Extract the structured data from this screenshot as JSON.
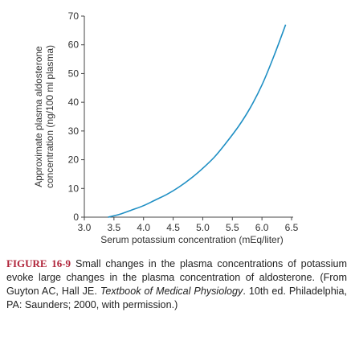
{
  "chart_data": {
    "type": "line",
    "xlabel": "Serum potassium concentration (mEq/liter)",
    "ylabel_lines": [
      "Approximate plasma aldosterone",
      "concentration (ng/100 ml plasma)"
    ],
    "xlim": [
      3.0,
      6.5
    ],
    "ylim": [
      0,
      70
    ],
    "x_ticks": [
      "3.0",
      "3.5",
      "4.0",
      "4.5",
      "5.0",
      "5.5",
      "6.0",
      "6.5"
    ],
    "y_ticks": [
      "0",
      "10",
      "20",
      "30",
      "40",
      "50",
      "60",
      "70"
    ],
    "grid": false,
    "line_color": "#1f8fc4",
    "series": [
      {
        "x": [
          3.4,
          3.6,
          3.8,
          4.0,
          4.2,
          4.4,
          4.6,
          4.8,
          5.0,
          5.2,
          5.4,
          5.6,
          5.8,
          6.0,
          6.2,
          6.4
        ],
        "y": [
          0,
          1,
          2.5,
          4,
          6,
          8,
          10.5,
          13.5,
          17,
          21,
          26,
          31.5,
          38,
          46,
          56,
          67
        ]
      }
    ]
  },
  "caption": {
    "label": "FIGURE 16-9",
    "text_before_title": "Small changes in the plasma concentrations of potassium evoke large changes in the plasma concentration of aldosterone. (From Guyton AC, Hall JE. ",
    "book_title": "Textbook of Medical Physiology",
    "text_after_title": ". 10th ed. Philadelphia, PA: Saunders; 2000, with permission.)"
  }
}
